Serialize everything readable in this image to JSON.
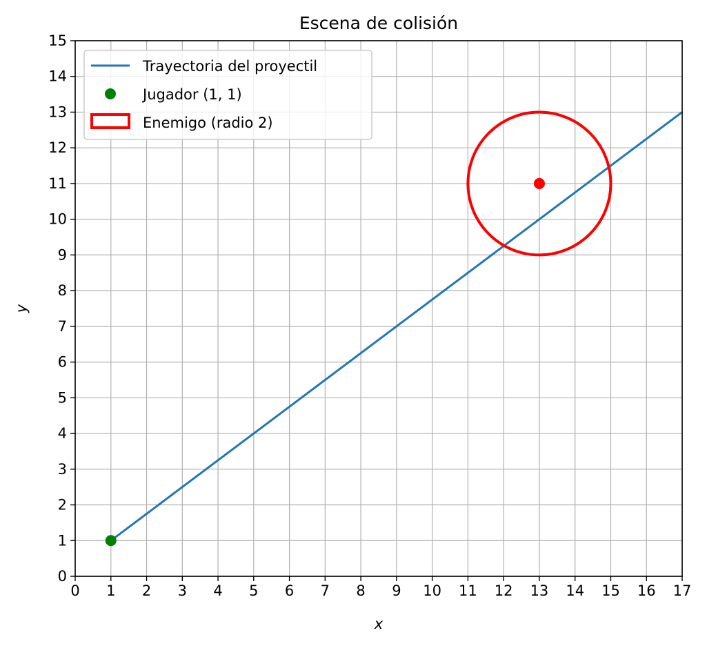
{
  "chart_data": {
    "type": "line",
    "title": "Escena de colisión",
    "xlabel": "x",
    "ylabel": "y",
    "xlim": [
      0,
      17
    ],
    "ylim": [
      0,
      15
    ],
    "x_ticks": [
      "0",
      "1",
      "2",
      "3",
      "4",
      "5",
      "6",
      "7",
      "8",
      "9",
      "10",
      "11",
      "12",
      "13",
      "14",
      "15",
      "16",
      "17"
    ],
    "y_ticks": [
      "0",
      "1",
      "2",
      "3",
      "4",
      "5",
      "6",
      "7",
      "8",
      "9",
      "10",
      "11",
      "12",
      "13",
      "14",
      "15"
    ],
    "grid": true,
    "legend_position": "top-left",
    "series": [
      {
        "name": "Trayectoria del proyectil",
        "kind": "line",
        "color": "#1f77b4",
        "x": [
          1,
          17
        ],
        "y": [
          1,
          13
        ]
      },
      {
        "name": "Jugador (1, 1)",
        "kind": "scatter",
        "color": "#008000",
        "x": [
          1
        ],
        "y": [
          1
        ]
      },
      {
        "name": "Enemigo (radio 2)",
        "kind": "circle",
        "color": "#ff0000",
        "center": [
          13,
          11
        ],
        "radius": 2
      }
    ],
    "enemy_center_marker": {
      "x": 13,
      "y": 11,
      "color": "#ff0000"
    }
  }
}
